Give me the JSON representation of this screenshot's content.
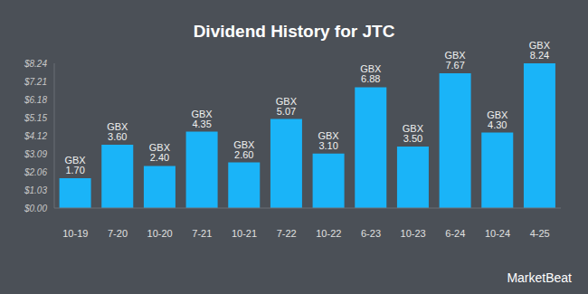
{
  "chart_data": {
    "type": "bar",
    "title": "Dividend History for JTC",
    "source": "MarketBeat",
    "categories": [
      "10-19",
      "7-20",
      "10-20",
      "7-21",
      "10-21",
      "7-22",
      "10-22",
      "6-23",
      "10-23",
      "6-24",
      "10-24",
      "4-25"
    ],
    "values": [
      1.7,
      3.6,
      2.4,
      4.35,
      2.6,
      5.07,
      3.1,
      6.88,
      3.5,
      7.67,
      4.3,
      8.24
    ],
    "value_labels": [
      "GBX 1.70",
      "GBX 3.60",
      "GBX 2.40",
      "GBX 4.35",
      "GBX 2.60",
      "GBX 5.07",
      "GBX 3.10",
      "GBX 6.88",
      "GBX 3.50",
      "GBX 7.67",
      "GBX 4.30",
      "GBX 8.24"
    ],
    "color": "#1ab4f8",
    "ylim": [
      0,
      8.24
    ],
    "yticks": [
      {
        "value": 0,
        "label": "$0.00"
      },
      {
        "value": 1.03,
        "label": "$1.03"
      },
      {
        "value": 2.06,
        "label": "$2.06"
      },
      {
        "value": 3.09,
        "label": "$3.09"
      },
      {
        "value": 4.12,
        "label": "$4.12"
      },
      {
        "value": 5.15,
        "label": "$5.15"
      },
      {
        "value": 6.18,
        "label": "$6.18"
      },
      {
        "value": 7.21,
        "label": "$7.21"
      },
      {
        "value": 8.24,
        "label": "$8.24"
      }
    ],
    "grid": false,
    "data_labels": true
  }
}
